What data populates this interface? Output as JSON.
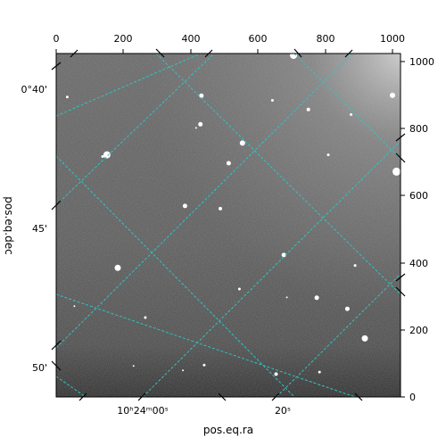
{
  "figure": {
    "xlabel": "pos.eq.ra",
    "ylabel": "pos.eq.dec",
    "top_ticks": [
      "0",
      "200",
      "400",
      "600",
      "800",
      "1000"
    ],
    "right_ticks": [
      "0",
      "200",
      "400",
      "600",
      "800",
      "1000"
    ],
    "left_ticks": [
      "0°40'",
      "45'",
      "50'"
    ],
    "bottom_ticks": [
      "10ʰ24ᵐ00ˢ",
      "20ˢ"
    ],
    "grid_color": "#2ec4c4",
    "image_type": "grayscale astronomical star field"
  },
  "chart_data": {
    "type": "heatmap",
    "title": "",
    "xlabel": "pos.eq.ra",
    "ylabel": "pos.eq.dec",
    "pixel_axes": {
      "x_ticks": [
        0,
        200,
        400,
        600,
        800,
        1000
      ],
      "y_ticks": [
        0,
        200,
        400,
        600,
        800,
        1000
      ],
      "xlim": [
        0,
        1024
      ],
      "ylim": [
        0,
        1024
      ]
    },
    "world_axes": {
      "ra_ticks": [
        "10ʰ24ᵐ00ˢ",
        "20ˢ"
      ],
      "dec_ticks": [
        "0°40'",
        "45'",
        "50'"
      ]
    },
    "grid": true,
    "colormap": "gray",
    "stars": [
      {
        "x": 706,
        "y": 1016,
        "r": 4
      },
      {
        "x": 1000,
        "y": 897,
        "r": 3
      },
      {
        "x": 33,
        "y": 892,
        "r": 1.5
      },
      {
        "x": 432,
        "y": 896,
        "r": 2.5
      },
      {
        "x": 643,
        "y": 882,
        "r": 1.5
      },
      {
        "x": 750,
        "y": 855,
        "r": 2
      },
      {
        "x": 877,
        "y": 840,
        "r": 1.5
      },
      {
        "x": 429,
        "y": 811,
        "r": 2.5
      },
      {
        "x": 416,
        "y": 800,
        "r": 1
      },
      {
        "x": 554,
        "y": 755,
        "r": 3
      },
      {
        "x": 151,
        "y": 720,
        "r": 4
      },
      {
        "x": 809,
        "y": 720,
        "r": 1.5
      },
      {
        "x": 513,
        "y": 695,
        "r": 2.5
      },
      {
        "x": 1012,
        "y": 670,
        "r": 4.5
      },
      {
        "x": 138,
        "y": 715,
        "r": 1.5
      },
      {
        "x": 383,
        "y": 568,
        "r": 2.5
      },
      {
        "x": 488,
        "y": 560,
        "r": 2
      },
      {
        "x": 677,
        "y": 422,
        "r": 2.5
      },
      {
        "x": 183,
        "y": 384,
        "r": 3.5
      },
      {
        "x": 889,
        "y": 391,
        "r": 1.5
      },
      {
        "x": 545,
        "y": 321,
        "r": 1.5
      },
      {
        "x": 775,
        "y": 295,
        "r": 2.5
      },
      {
        "x": 866,
        "y": 262,
        "r": 2.5
      },
      {
        "x": 54,
        "y": 270,
        "r": 1
      },
      {
        "x": 265,
        "y": 236,
        "r": 1.5
      },
      {
        "x": 686,
        "y": 296,
        "r": 1
      },
      {
        "x": 918,
        "y": 174,
        "r": 3.5
      },
      {
        "x": 440,
        "y": 95,
        "r": 1.5
      },
      {
        "x": 654,
        "y": 68,
        "r": 2
      },
      {
        "x": 783,
        "y": 74,
        "r": 1.5
      },
      {
        "x": 377,
        "y": 79,
        "r": 1
      },
      {
        "x": 230,
        "y": 92,
        "r": 1
      }
    ]
  }
}
